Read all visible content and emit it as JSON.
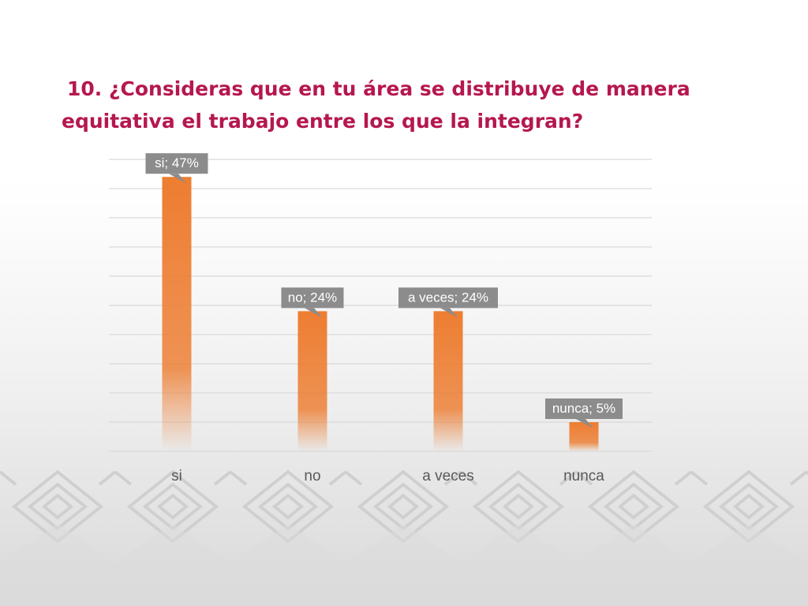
{
  "title": {
    "line1": "10. ¿Consideras que en tu área se distribuye de manera",
    "line2": "equitativa el trabajo entre los que la integran?"
  },
  "colors": {
    "title": "#b5174f",
    "bar": "#ed7d31",
    "label_box": "#8c8c8c",
    "label_text": "#ffffff",
    "gridline": "#d9d9d9",
    "axis_text": "#595959",
    "pattern": "#cfcfcf"
  },
  "chart_data": {
    "type": "bar",
    "categories": [
      "si",
      "no",
      "a veces",
      "nunca"
    ],
    "values": [
      47,
      24,
      24,
      5
    ],
    "data_labels": [
      "si; 47%",
      "no; 24%",
      "a veces; 24%",
      "nunca; 5%"
    ],
    "unit": "%",
    "ylim": [
      0,
      50
    ],
    "gridlines": true,
    "legend": "none"
  }
}
